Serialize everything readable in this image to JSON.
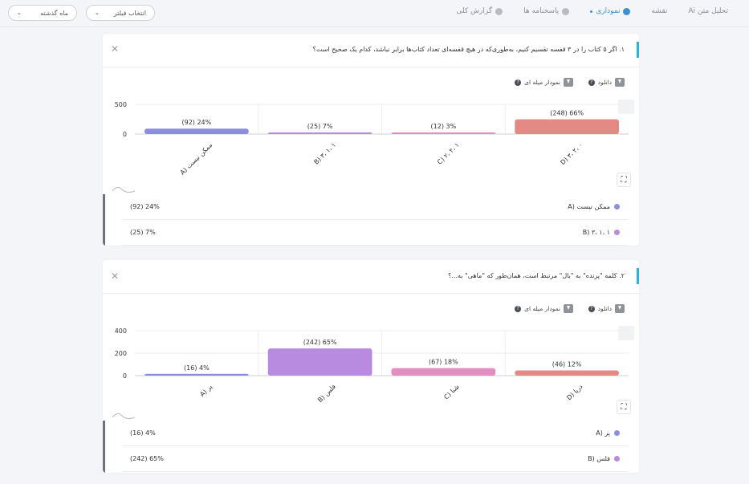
{
  "tabs": [
    {
      "label": "گزارش کلی",
      "active": false
    },
    {
      "label": "پاسخنامه ها",
      "active": false
    },
    {
      "label": "نموداری",
      "active": true
    },
    {
      "label": "نقشه",
      "active": false
    },
    {
      "label": "تحلیل متن Ai",
      "active": false
    }
  ],
  "filters": {
    "filter_select": "انتخاب فیلتر",
    "period_select": "ماه گذشته"
  },
  "tools": {
    "download_label": "دانلود",
    "bar_chart_label": "نمودار میله ای"
  },
  "questions": [
    {
      "title": "۱. اگر ۵ کتاب را در ۳ قفسه تقسیم کنیم، به‌طوری‌که در هیچ قفسه‌ای تعداد کتاب‌ها برابر نباشد، کدام یک صحیح است؟",
      "chart_data": {
        "type": "bar",
        "categories": [
          "A) ممکن نیست",
          "B) ۳، ۱، ۱",
          "C) ۲، ۲، ۱",
          "D) ۳، ۲، ۰"
        ],
        "values": [
          92,
          25,
          12,
          248
        ],
        "labels": [
          "24% (92)",
          "7% (25)",
          "3% (12)",
          "66% (248)"
        ],
        "colors": [
          "#8d8de0",
          "#b88ae0",
          "#e38ec0",
          "#e38a85"
        ],
        "yticks": [
          0,
          500
        ],
        "ylim": [
          0,
          500
        ]
      },
      "legend": [
        {
          "name": "ممکن نیست (A",
          "value": "24% (92)",
          "color": "#8d8de0"
        },
        {
          "name": "B) ۳، ۱، ۱",
          "value": "7% (25)",
          "color": "#b88ae0"
        }
      ]
    },
    {
      "title": "۲. کلمه \"پرنده\" به \"بال\" مرتبط است، همان‌طور که \"ماهی\" به...؟",
      "chart_data": {
        "type": "bar",
        "categories": [
          "A) پر",
          "B) فلس",
          "C) شنا",
          "D) دریا"
        ],
        "values": [
          16,
          242,
          67,
          46
        ],
        "labels": [
          "4% (16)",
          "65% (242)",
          "18% (67)",
          "12% (46)"
        ],
        "colors": [
          "#8d8de0",
          "#b88ae0",
          "#e38ec0",
          "#e38a85"
        ],
        "yticks": [
          0,
          200,
          400
        ],
        "ylim": [
          0,
          400
        ]
      },
      "legend": [
        {
          "name": "پر (A",
          "value": "4% (16)",
          "color": "#8d8de0"
        },
        {
          "name": "فلس (B",
          "value": "65% (242)",
          "color": "#b88ae0"
        }
      ]
    }
  ]
}
